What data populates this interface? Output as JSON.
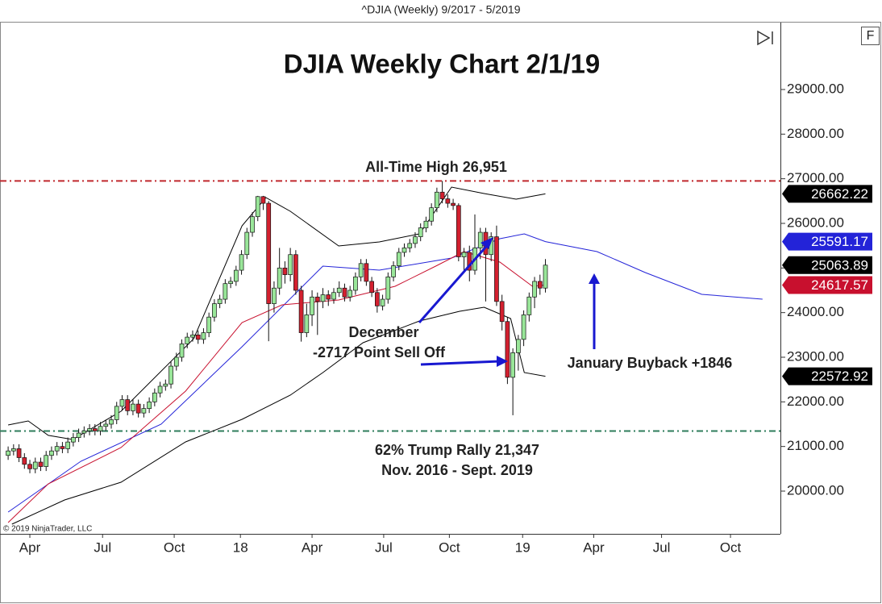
{
  "header": "^DJIA (Weekly)  9/2017 - 5/2019",
  "copyright": "© 2019 NinjaTrader, LLC",
  "button": "F",
  "chart_data": {
    "type": "candlestick",
    "title": "DJIA Weekly Chart 2/1/19",
    "up_color": "#99e699",
    "down_color": "#d3202f",
    "x": [
      0,
      1,
      2,
      3,
      4,
      5,
      6,
      7,
      8,
      9,
      10,
      11,
      12,
      13,
      14,
      15,
      16,
      17,
      18,
      19,
      20,
      21,
      22,
      23,
      24,
      25,
      26,
      27,
      28,
      29,
      30,
      31,
      32,
      33,
      34,
      35,
      36,
      37,
      38,
      39,
      40,
      41,
      42,
      43,
      44,
      45,
      46,
      47,
      48,
      49,
      50,
      51,
      52,
      53,
      54,
      55,
      56,
      57,
      58,
      59,
      60,
      61,
      62,
      63,
      64,
      65,
      66,
      67,
      68,
      69,
      70,
      71,
      72,
      73,
      74,
      75,
      76,
      77,
      78,
      79,
      80,
      81,
      82,
      83,
      84,
      85,
      86,
      87,
      88,
      89,
      90,
      91,
      92,
      93,
      94,
      95,
      96,
      97,
      98,
      99
    ],
    "open": [
      20800,
      20900,
      20950,
      20750,
      20600,
      20500,
      20650,
      20550,
      20800,
      20900,
      21000,
      20950,
      21100,
      21200,
      21300,
      21350,
      21400,
      21350,
      21450,
      21500,
      21600,
      21900,
      22050,
      21800,
      21950,
      21750,
      21850,
      22000,
      22200,
      22350,
      22400,
      22800,
      23000,
      23300,
      23450,
      23500,
      23400,
      23550,
      23900,
      24200,
      24300,
      24650,
      24700,
      24950,
      25300,
      25800,
      26150,
      26600,
      26450,
      24200,
      24550,
      25000,
      24850,
      25300,
      24500,
      23550,
      23950,
      24350,
      24250,
      24400,
      24300,
      24450,
      24550,
      24350,
      24500,
      24800,
      25100,
      24700,
      24450,
      24150,
      24300,
      24800,
      25050,
      25350,
      25450,
      25550,
      25700,
      25900,
      26050,
      26350,
      26700,
      26550,
      26450,
      26400,
      25250,
      25350,
      24950,
      25450,
      25800,
      25300,
      25700,
      24250,
      23800,
      22550,
      23100,
      23400,
      23950,
      24350,
      24700,
      24550
    ],
    "high": [
      21000,
      21050,
      21050,
      20850,
      20700,
      20750,
      20750,
      20900,
      21000,
      21100,
      21100,
      21200,
      21300,
      21400,
      21450,
      21500,
      21500,
      21550,
      21600,
      21700,
      22000,
      22150,
      22150,
      22050,
      22050,
      21950,
      22100,
      22300,
      22450,
      22500,
      22900,
      23100,
      23400,
      23550,
      23600,
      23600,
      23650,
      24000,
      24300,
      24400,
      24750,
      24800,
      25050,
      25400,
      25900,
      26250,
      26616,
      26616,
      26500,
      24700,
      25450,
      25150,
      25450,
      25400,
      24600,
      24200,
      24500,
      24450,
      24550,
      24500,
      24550,
      24700,
      24650,
      24600,
      24900,
      25200,
      25200,
      24800,
      24550,
      24400,
      24900,
      25150,
      25450,
      25550,
      25650,
      25800,
      26000,
      26150,
      26450,
      26800,
      26951,
      26650,
      26550,
      26450,
      25450,
      25500,
      26200,
      25900,
      25900,
      25800,
      25950,
      24400,
      23900,
      23200,
      23500,
      24050,
      24450,
      24800,
      24850,
      25200
    ],
    "low": [
      20700,
      20800,
      20650,
      20500,
      20400,
      20400,
      20450,
      20450,
      20700,
      20800,
      20850,
      20850,
      21000,
      21100,
      21200,
      21250,
      21250,
      21250,
      21350,
      21400,
      21500,
      21800,
      21700,
      21700,
      21650,
      21650,
      21750,
      21900,
      22100,
      22250,
      22300,
      22700,
      22900,
      23200,
      23350,
      23300,
      23300,
      23450,
      23800,
      24100,
      24200,
      24550,
      24600,
      24850,
      25200,
      25700,
      26050,
      26300,
      23360,
      24000,
      24400,
      24650,
      24700,
      24400,
      23350,
      23450,
      23700,
      23500,
      24100,
      24150,
      24200,
      24350,
      24250,
      24250,
      24400,
      24700,
      24600,
      24350,
      24000,
      24050,
      24200,
      24700,
      24950,
      25250,
      25350,
      25450,
      25600,
      25800,
      25950,
      26250,
      26450,
      26350,
      26300,
      25150,
      24900,
      24700,
      24850,
      25200,
      24250,
      25150,
      24150,
      23600,
      22400,
      21700,
      22700,
      23250,
      23800,
      24100,
      24400,
      24450
    ],
    "close": [
      20900,
      20950,
      20750,
      20600,
      20500,
      20650,
      20550,
      20800,
      20900,
      21000,
      20950,
      21100,
      21200,
      21300,
      21350,
      21400,
      21350,
      21450,
      21500,
      21600,
      21900,
      22050,
      21800,
      21950,
      21750,
      21850,
      22000,
      22200,
      22350,
      22400,
      22800,
      23000,
      23300,
      23450,
      23500,
      23400,
      23550,
      23900,
      24200,
      24300,
      24650,
      24700,
      24950,
      25300,
      25800,
      26150,
      26600,
      26450,
      24200,
      24550,
      25000,
      24850,
      25300,
      24500,
      23550,
      23950,
      24350,
      24250,
      24400,
      24300,
      24450,
      24550,
      24350,
      24500,
      24800,
      25100,
      24700,
      24450,
      24150,
      24300,
      24800,
      25050,
      25350,
      25450,
      25550,
      25700,
      25900,
      26050,
      26350,
      26700,
      26550,
      26450,
      26400,
      25250,
      25350,
      24950,
      25450,
      25800,
      25300,
      25700,
      24250,
      23800,
      22550,
      23100,
      23400,
      23950,
      24350,
      24700,
      24550,
      25063.89
    ],
    "close_label_color": "#000000",
    "indicators": [
      {
        "color": "#000000",
        "x": [
          0,
          3.7,
          7.4,
          11.9,
          20.8,
          34.2,
          43.1,
          47.5,
          52,
          60.9,
          68.4,
          75.8,
          81.7,
          87.7,
          93.6,
          99
        ],
        "values": [
          21482,
          21573,
          21248,
          21157,
          21789,
          23416,
          25946,
          26578,
          26271,
          25494,
          25584,
          25765,
          26813,
          26669,
          26542,
          26662.22
        ]
      },
      {
        "color": "#2323d8",
        "x": [
          0,
          13.4,
          28.2,
          43.1,
          58,
          68.4,
          81.7,
          90.6,
          95.1,
          99,
          108.5,
          117.4,
          127.8,
          139
        ],
        "values": [
          19530,
          20668,
          21500,
          23235,
          25042,
          24952,
          25223,
          25657,
          25765,
          25591.17,
          25367,
          24897,
          24410,
          24301
        ]
      },
      {
        "color": "#c8102e",
        "x": [
          0,
          7.4,
          20.8,
          32.7,
          43.1,
          50.5,
          60.9,
          71.3,
          78.8,
          84,
          90.6,
          96.6,
          99
        ],
        "values": [
          19295,
          20163,
          20976,
          22241,
          23777,
          24175,
          24283,
          24590,
          25042,
          25367,
          25133,
          24590,
          24617.57
        ]
      },
      {
        "color": "#000000",
        "x": [
          0.7,
          10.4,
          20.8,
          32.7,
          43.1,
          52,
          58,
          65.4,
          75.8,
          83.2,
          87.7,
          92.6,
          95.1,
          99
        ],
        "values": [
          19259,
          19801,
          20199,
          21102,
          21608,
          22150,
          22656,
          23325,
          23813,
          24030,
          24120,
          23867,
          22656,
          22572.92
        ]
      }
    ],
    "reference_lines": [
      {
        "value": 26951,
        "color": "#c0282d",
        "label": "All-Time High 26,951"
      },
      {
        "value": 21347,
        "color": "#2e7d5b",
        "label": "62% Trump Rally 21,347",
        "sublabel": "Nov. 2016 - Sept. 2019"
      }
    ],
    "annotations": [
      "December",
      "-2717 Point Sell Off",
      "January Buyback +1846"
    ],
    "xlim": [
      -1.5,
      142.3
    ],
    "xticks": [
      {
        "value": 4,
        "label": "Apr"
      },
      {
        "value": 17.4,
        "label": "Jul"
      },
      {
        "value": 30.6,
        "label": "Oct"
      },
      {
        "value": 42.8,
        "label": "18"
      },
      {
        "value": 56,
        "label": "Apr"
      },
      {
        "value": 69.2,
        "label": "Jul"
      },
      {
        "value": 81.3,
        "label": "Oct"
      },
      {
        "value": 94.8,
        "label": "19"
      },
      {
        "value": 107.9,
        "label": "Apr"
      },
      {
        "value": 120.4,
        "label": "Jul"
      },
      {
        "value": 133.1,
        "label": "Oct"
      }
    ],
    "ylim": [
      19042,
      30500
    ],
    "yticks": [
      {
        "value": 20000,
        "label": "20000.00"
      },
      {
        "value": 21000,
        "label": "21000.00"
      },
      {
        "value": 22000,
        "label": "22000.00"
      },
      {
        "value": 23000,
        "label": "23000.00"
      },
      {
        "value": 24000,
        "label": "24000.00"
      },
      {
        "value": 25000,
        "label": "25000.00"
      },
      {
        "value": 26000,
        "label": "26000.00"
      },
      {
        "value": 27000,
        "label": "27000.00"
      },
      {
        "value": 28000,
        "label": "28000.00"
      },
      {
        "value": 29000,
        "label": "29000.00"
      }
    ]
  }
}
